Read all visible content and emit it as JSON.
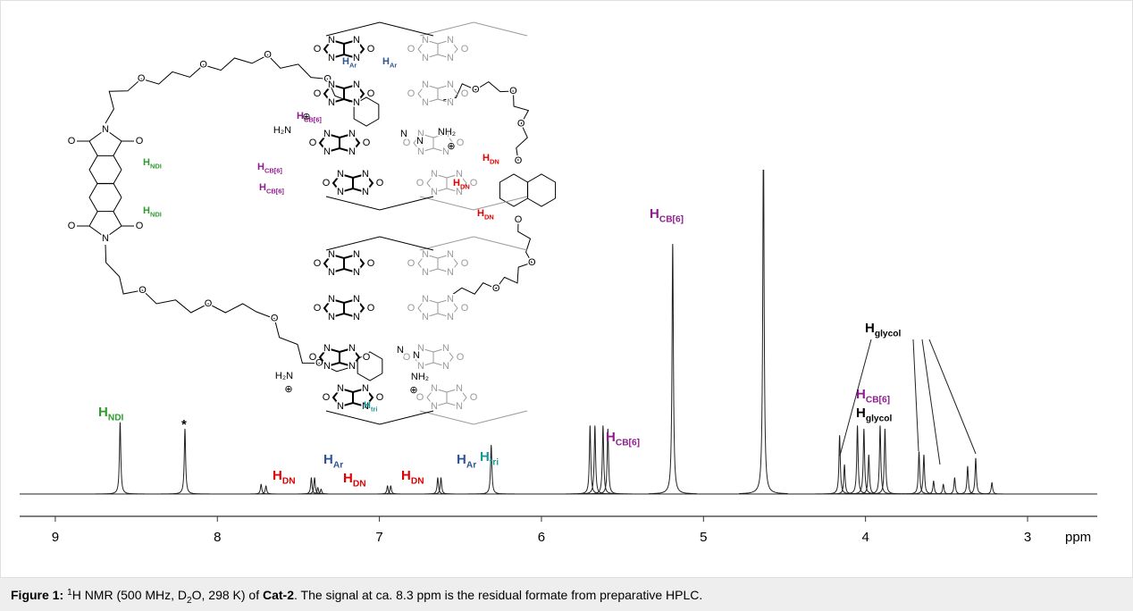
{
  "chart_data": {
    "type": "nmr",
    "xlim": [
      9.22,
      2.57
    ],
    "xticks": [
      9,
      8,
      7,
      6,
      5,
      4,
      3
    ],
    "x_unit": "ppm",
    "ylim": [
      0,
      100
    ],
    "peaks": [
      {
        "ppm": 8.6,
        "intensity": 22
      },
      {
        "ppm": 8.2,
        "intensity": 20
      },
      {
        "ppm": 7.73,
        "intensity": 3
      },
      {
        "ppm": 7.7,
        "intensity": 2.5
      },
      {
        "ppm": 7.42,
        "intensity": 5
      },
      {
        "ppm": 7.4,
        "intensity": 5
      },
      {
        "ppm": 7.38,
        "intensity": 2
      },
      {
        "ppm": 7.36,
        "intensity": 1.5
      },
      {
        "ppm": 6.95,
        "intensity": 2.5
      },
      {
        "ppm": 6.93,
        "intensity": 2.5
      },
      {
        "ppm": 6.64,
        "intensity": 5
      },
      {
        "ppm": 6.62,
        "intensity": 5
      },
      {
        "ppm": 6.31,
        "intensity": 15
      },
      {
        "ppm": 5.7,
        "intensity": 21
      },
      {
        "ppm": 5.67,
        "intensity": 21
      },
      {
        "ppm": 5.62,
        "intensity": 21
      },
      {
        "ppm": 5.59,
        "intensity": 20
      },
      {
        "ppm": 5.19,
        "intensity": 77
      },
      {
        "ppm": 4.63,
        "intensity": 110
      },
      {
        "ppm": 4.16,
        "intensity": 18
      },
      {
        "ppm": 4.13,
        "intensity": 9
      },
      {
        "ppm": 4.05,
        "intensity": 21
      },
      {
        "ppm": 4.01,
        "intensity": 20
      },
      {
        "ppm": 3.98,
        "intensity": 12
      },
      {
        "ppm": 3.91,
        "intensity": 21
      },
      {
        "ppm": 3.88,
        "intensity": 20
      },
      {
        "ppm": 3.67,
        "intensity": 13
      },
      {
        "ppm": 3.64,
        "intensity": 12
      },
      {
        "ppm": 3.58,
        "intensity": 4
      },
      {
        "ppm": 3.52,
        "intensity": 3
      },
      {
        "ppm": 3.45,
        "intensity": 5
      },
      {
        "ppm": 3.37,
        "intensity": 8.5
      },
      {
        "ppm": 3.32,
        "intensity": 11
      },
      {
        "ppm": 3.22,
        "intensity": 3.5
      }
    ],
    "peak_labels": [
      {
        "text": "H",
        "sub": "NDI",
        "color": "#2e9b2e"
      },
      {
        "text": "*",
        "color": "#000000"
      },
      {
        "text": "H",
        "sub": "DN",
        "color": "#e00000"
      },
      {
        "text": "H",
        "sub": "Ar",
        "color": "#2f5597"
      },
      {
        "text": "H",
        "sub": "DN",
        "color": "#e00000"
      },
      {
        "text": "H",
        "sub": "DN",
        "color": "#e00000"
      },
      {
        "text": "H",
        "sub": "Ar",
        "color": "#2f5597"
      },
      {
        "text": "H",
        "sub": "tri",
        "color": "#1a9696"
      },
      {
        "text": "H",
        "sub": "CB[6]",
        "color": "#8e1c8e"
      },
      {
        "text": "H",
        "sub": "CB[6]",
        "color": "#8e1c8e"
      },
      {
        "text": "H",
        "sub": "glycol",
        "color": "#000000"
      },
      {
        "text": "H",
        "sub": "CB[6]",
        "color": "#8e1c8e"
      },
      {
        "text": "H",
        "sub": "glycol",
        "color": "#000000"
      }
    ]
  },
  "structure": {
    "h_labels": [
      {
        "text": "H",
        "sub": "Ar",
        "color": "#2f5597"
      },
      {
        "text": "H",
        "sub": "Ar",
        "color": "#2f5597"
      },
      {
        "text": "H",
        "sub": "CB[6]",
        "color": "#8e1c8e"
      },
      {
        "text": "H",
        "sub": "CB[6]",
        "color": "#8e1c8e"
      },
      {
        "text": "H",
        "sub": "CB[6]",
        "color": "#8e1c8e"
      },
      {
        "text": "H",
        "sub": "NDI",
        "color": "#2e9b2e"
      },
      {
        "text": "H",
        "sub": "NDI",
        "color": "#2e9b2e"
      },
      {
        "text": "H",
        "sub": "DN",
        "color": "#e00000"
      },
      {
        "text": "H",
        "sub": "DN",
        "color": "#e00000"
      },
      {
        "text": "H",
        "sub": "DN",
        "color": "#e00000"
      },
      {
        "text": "H",
        "sub": "tri",
        "color": "#1a9696"
      }
    ],
    "atoms": {
      "nitrogen": "N",
      "oxygen": "O",
      "ammonium": "H₂N",
      "ammonium_right": "NH₂",
      "charge": "⊕"
    }
  },
  "caption": {
    "parts": [
      {
        "text": "Figure 1:",
        "style": "bold"
      },
      {
        "text": "1",
        "style": "sup"
      },
      {
        "text": "H NMR (500 MHz, D",
        "style": "normal"
      },
      {
        "text": "2",
        "style": "sub"
      },
      {
        "text": "O, 298 K) of ",
        "style": "normal"
      },
      {
        "text": "Cat-2",
        "style": "bold"
      },
      {
        "text": ". The signal at ca. 8.3 ppm is the residual formate from preparative HPLC.",
        "style": "normal"
      }
    ]
  }
}
